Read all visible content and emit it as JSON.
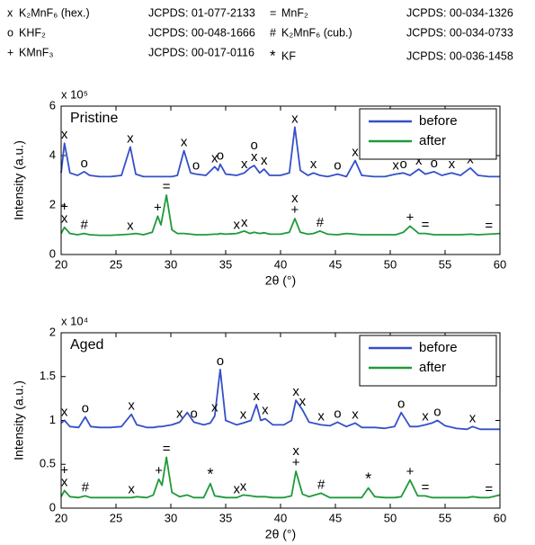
{
  "header": {
    "phases": [
      {
        "symbol": "x",
        "name": "K₂MnF₆ (hex.)",
        "jcpds": "JCPDS: 01-077-2133"
      },
      {
        "symbol": "o",
        "name": "KHF₂",
        "jcpds": "JCPDS: 00-048-1666"
      },
      {
        "symbol": "+",
        "name": "KMnF₃",
        "jcpds": "JCPDS: 00-017-0116"
      },
      {
        "symbol": "=",
        "name": "MnF₂",
        "jcpds": "JCPDS: 00-034-1326"
      },
      {
        "symbol": "#",
        "name": "K₂MnF₆ (cub.)",
        "jcpds": "JCPDS: 00-034-0733"
      },
      {
        "symbol": "*",
        "name": "KF",
        "jcpds": "JCPDS: 00-036-1458",
        "color": "#e8231f"
      }
    ]
  },
  "chart_data": [
    {
      "type": "line",
      "title": "Pristine",
      "scale_label": "x 10⁵",
      "x_label": "2θ (°)",
      "y_label": "Intensity (a.u.)",
      "xlim": [
        20,
        60
      ],
      "xticks": [
        20,
        25,
        30,
        35,
        40,
        45,
        50,
        55,
        60
      ],
      "ylim": [
        0,
        6
      ],
      "yticks": [
        0,
        2,
        4,
        6
      ],
      "legend": "upper right",
      "x": [
        20,
        20.3,
        20.8,
        21.5,
        22.1,
        22.6,
        23.5,
        24.5,
        25.5,
        26.3,
        26.8,
        27.5,
        28.3,
        28.8,
        29.1,
        29.6,
        30.1,
        30.6,
        31.2,
        31.8,
        32.3,
        33.2,
        34.0,
        34.3,
        34.5,
        35.0,
        36.0,
        36.7,
        37.2,
        37.6,
        38.1,
        38.5,
        39.0,
        40.0,
        40.8,
        41.3,
        41.8,
        42.5,
        43.0,
        43.6,
        44.3,
        45.2,
        46.0,
        46.8,
        47.4,
        48.5,
        49.5,
        50.5,
        51.2,
        51.8,
        52.6,
        53.2,
        54.0,
        54.7,
        55.6,
        56.4,
        57.3,
        58.0,
        59.0,
        60
      ],
      "series": [
        {
          "name": "before",
          "color": "#3550c8",
          "values": [
            3.3,
            4.5,
            3.3,
            3.2,
            3.35,
            3.2,
            3.15,
            3.15,
            3.2,
            4.35,
            3.25,
            3.15,
            3.15,
            3.15,
            3.15,
            3.15,
            3.15,
            3.2,
            4.2,
            3.3,
            3.25,
            3.2,
            3.55,
            3.4,
            3.65,
            3.25,
            3.2,
            3.3,
            3.5,
            3.6,
            3.3,
            3.45,
            3.2,
            3.2,
            3.3,
            5.15,
            3.4,
            3.2,
            3.3,
            3.2,
            3.15,
            3.25,
            3.15,
            3.8,
            3.2,
            3.15,
            3.15,
            3.25,
            3.3,
            3.2,
            3.45,
            3.25,
            3.35,
            3.2,
            3.3,
            3.2,
            3.5,
            3.2,
            3.15,
            3.15
          ],
          "peaks": [
            {
              "x": 20.3,
              "label": "x"
            },
            {
              "x": 22.1,
              "label": "o"
            },
            {
              "x": 26.3,
              "label": "x"
            },
            {
              "x": 31.2,
              "label": "x"
            },
            {
              "x": 32.3,
              "label": "o"
            },
            {
              "x": 34.0,
              "label": "x"
            },
            {
              "x": 34.5,
              "label": "o"
            },
            {
              "x": 36.7,
              "label": "x"
            },
            {
              "x": 37.6,
              "label": "x"
            },
            {
              "x": 37.6,
              "label": "o"
            },
            {
              "x": 38.5,
              "label": "x"
            },
            {
              "x": 41.3,
              "label": "x"
            },
            {
              "x": 43.0,
              "label": "x"
            },
            {
              "x": 45.2,
              "label": "o"
            },
            {
              "x": 46.8,
              "label": "x"
            },
            {
              "x": 50.5,
              "label": "x"
            },
            {
              "x": 51.2,
              "label": "o"
            },
            {
              "x": 52.6,
              "label": "x"
            },
            {
              "x": 54.0,
              "label": "o"
            },
            {
              "x": 55.6,
              "label": "x"
            },
            {
              "x": 57.3,
              "label": "x"
            }
          ]
        },
        {
          "name": "after",
          "color": "#1e9a3a",
          "values": [
            0.85,
            1.1,
            0.85,
            0.8,
            0.85,
            0.8,
            0.78,
            0.78,
            0.8,
            0.82,
            0.85,
            0.8,
            0.9,
            1.55,
            1.2,
            2.4,
            1.0,
            0.85,
            0.85,
            0.82,
            0.8,
            0.8,
            0.82,
            0.82,
            0.85,
            0.82,
            0.85,
            0.95,
            0.85,
            0.9,
            0.85,
            0.88,
            0.82,
            0.82,
            0.9,
            1.45,
            0.9,
            0.82,
            0.85,
            0.95,
            0.82,
            0.8,
            0.85,
            0.82,
            0.8,
            0.8,
            0.8,
            0.8,
            0.9,
            1.15,
            0.85,
            0.85,
            0.8,
            0.8,
            0.8,
            0.8,
            0.82,
            0.8,
            0.82,
            0.85
          ],
          "peaks": [
            {
              "x": 20.3,
              "label": "x"
            },
            {
              "x": 20.3,
              "label": "+"
            },
            {
              "x": 22.1,
              "label": "#"
            },
            {
              "x": 26.3,
              "label": "x"
            },
            {
              "x": 28.8,
              "label": "+"
            },
            {
              "x": 29.6,
              "label": "="
            },
            {
              "x": 36.0,
              "label": "x"
            },
            {
              "x": 36.7,
              "label": "x"
            },
            {
              "x": 41.3,
              "label": "+"
            },
            {
              "x": 41.3,
              "label": "x"
            },
            {
              "x": 43.6,
              "label": "#"
            },
            {
              "x": 51.8,
              "label": "+"
            },
            {
              "x": 53.2,
              "label": "="
            },
            {
              "x": 59.0,
              "label": "="
            }
          ]
        }
      ]
    },
    {
      "type": "line",
      "title": "Aged",
      "scale_label": "x 10⁴",
      "x_label": "2θ (°)",
      "y_label": "Intensity (a.u.)",
      "xlim": [
        20,
        60
      ],
      "xticks": [
        20,
        25,
        30,
        35,
        40,
        45,
        50,
        55,
        60
      ],
      "ylim": [
        0,
        2
      ],
      "yticks": [
        0,
        0.5,
        1,
        1.5,
        2
      ],
      "legend": "upper right",
      "x": [
        20,
        20.3,
        20.8,
        21.6,
        22.2,
        22.7,
        23.5,
        24.5,
        25.5,
        26.4,
        26.9,
        27.8,
        28.4,
        28.9,
        29.2,
        29.6,
        30.1,
        30.8,
        31.5,
        32.1,
        33.0,
        33.6,
        34.0,
        34.5,
        35.0,
        36.0,
        36.6,
        37.3,
        37.8,
        38.2,
        38.6,
        39.3,
        40.3,
        41.0,
        41.4,
        42.0,
        42.6,
        43.7,
        44.5,
        45.2,
        46.0,
        46.8,
        47.4,
        48.0,
        48.6,
        49.5,
        50.4,
        51.0,
        51.8,
        52.5,
        53.2,
        53.8,
        54.3,
        55.0,
        56.0,
        57.0,
        57.5,
        58.2,
        59.0,
        60
      ],
      "series": [
        {
          "name": "before",
          "color": "#3550c8",
          "values": [
            0.97,
            1.0,
            0.93,
            0.92,
            1.04,
            0.93,
            0.92,
            0.92,
            0.93,
            1.07,
            0.95,
            0.92,
            0.92,
            0.93,
            0.93,
            0.94,
            0.95,
            0.98,
            1.09,
            0.98,
            0.95,
            0.97,
            1.05,
            1.58,
            1.0,
            0.95,
            0.97,
            1.0,
            1.18,
            1.0,
            1.02,
            0.95,
            0.95,
            1.0,
            1.23,
            1.12,
            0.98,
            0.95,
            0.94,
            0.98,
            0.93,
            0.97,
            0.92,
            0.92,
            0.92,
            0.91,
            0.93,
            1.09,
            0.93,
            0.93,
            0.95,
            0.97,
            1.0,
            0.94,
            0.91,
            0.9,
            0.93,
            0.9,
            0.9,
            0.9
          ],
          "peaks": [
            {
              "x": 20.3,
              "label": "x"
            },
            {
              "x": 22.2,
              "label": "o"
            },
            {
              "x": 26.4,
              "label": "x"
            },
            {
              "x": 30.8,
              "label": "x"
            },
            {
              "x": 32.1,
              "label": "o"
            },
            {
              "x": 34.0,
              "label": "x"
            },
            {
              "x": 34.5,
              "label": "o"
            },
            {
              "x": 36.6,
              "label": "x"
            },
            {
              "x": 37.8,
              "label": "x"
            },
            {
              "x": 38.6,
              "label": "x"
            },
            {
              "x": 41.4,
              "label": "x"
            },
            {
              "x": 42.0,
              "label": "x"
            },
            {
              "x": 43.7,
              "label": "x"
            },
            {
              "x": 45.2,
              "label": "o"
            },
            {
              "x": 46.8,
              "label": "x"
            },
            {
              "x": 51.0,
              "label": "o"
            },
            {
              "x": 53.2,
              "label": "x"
            },
            {
              "x": 54.3,
              "label": "o"
            },
            {
              "x": 57.5,
              "label": "x"
            }
          ]
        },
        {
          "name": "after",
          "color": "#1e9a3a",
          "values": [
            0.13,
            0.2,
            0.13,
            0.12,
            0.14,
            0.12,
            0.12,
            0.12,
            0.12,
            0.12,
            0.13,
            0.12,
            0.15,
            0.33,
            0.26,
            0.58,
            0.18,
            0.13,
            0.15,
            0.12,
            0.12,
            0.28,
            0.14,
            0.13,
            0.12,
            0.12,
            0.15,
            0.14,
            0.13,
            0.13,
            0.13,
            0.12,
            0.12,
            0.14,
            0.42,
            0.16,
            0.13,
            0.17,
            0.12,
            0.12,
            0.12,
            0.12,
            0.12,
            0.23,
            0.13,
            0.12,
            0.12,
            0.13,
            0.32,
            0.14,
            0.14,
            0.12,
            0.12,
            0.12,
            0.12,
            0.12,
            0.13,
            0.12,
            0.12,
            0.15
          ],
          "peaks": [
            {
              "x": 20.3,
              "label": "x"
            },
            {
              "x": 20.3,
              "label": "+"
            },
            {
              "x": 22.2,
              "label": "#"
            },
            {
              "x": 26.4,
              "label": "x"
            },
            {
              "x": 28.9,
              "label": "+"
            },
            {
              "x": 29.6,
              "label": "="
            },
            {
              "x": 33.6,
              "label": "*",
              "color": "#e8231f"
            },
            {
              "x": 36.0,
              "label": "x"
            },
            {
              "x": 36.6,
              "label": "x"
            },
            {
              "x": 41.4,
              "label": "+"
            },
            {
              "x": 41.4,
              "label": "x"
            },
            {
              "x": 43.7,
              "label": "#"
            },
            {
              "x": 48.0,
              "label": "*",
              "color": "#e8231f"
            },
            {
              "x": 51.8,
              "label": "+"
            },
            {
              "x": 53.2,
              "label": "="
            },
            {
              "x": 59.0,
              "label": "="
            }
          ]
        }
      ]
    }
  ]
}
